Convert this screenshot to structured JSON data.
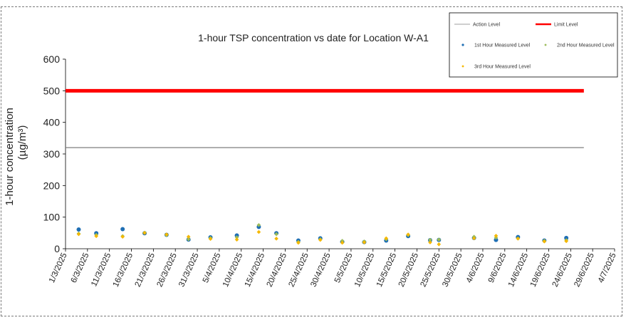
{
  "chart_data": {
    "type": "scatter",
    "title": "1-hour TSP concentration vs date for Location W-A1",
    "ylabel": "1-hour concentration",
    "ylabel_unit": "(µg/m³)",
    "ylim": [
      0,
      600
    ],
    "yticks": [
      "0",
      "100",
      "200",
      "300",
      "400",
      "500",
      "600"
    ],
    "xlim": [
      "1/3/2025",
      "4/7/2025"
    ],
    "xticks": [
      "1/3/2025",
      "6/3/2025",
      "11/3/2025",
      "16/3/2025",
      "21/3/2025",
      "26/3/2025",
      "31/3/2025",
      "5/4/2025",
      "10/4/2025",
      "15/4/2025",
      "20/4/2025",
      "25/4/2025",
      "30/4/2025",
      "5/5/2025",
      "10/5/2025",
      "15/5/2025",
      "20/5/2025",
      "25/5/2025",
      "30/5/2025",
      "4/6/2025",
      "9/6/2025",
      "14/6/2025",
      "19/6/2025",
      "24/6/2025",
      "29/6/2025",
      "4/7/2025"
    ],
    "grid": false,
    "legend_position": "top-right",
    "lines": [
      {
        "name": "Action Level",
        "value": 320,
        "color": "#7f7f7f",
        "x_start": "1/3/2025",
        "x_end": "27/6/2025"
      },
      {
        "name": "Limit Level",
        "value": 500,
        "color": "#ff0000",
        "x_start": "1/3/2025",
        "x_end": "27/6/2025"
      }
    ],
    "series": [
      {
        "name": "1st Hour Measured Level",
        "color": "#1f6fb4",
        "points": [
          [
            "4/3/2025",
            61
          ],
          [
            "8/3/2025",
            49
          ],
          [
            "14/3/2025",
            62
          ],
          [
            "19/3/2025",
            49
          ],
          [
            "24/3/2025",
            44
          ],
          [
            "29/3/2025",
            29
          ],
          [
            "3/4/2025",
            36
          ],
          [
            "9/4/2025",
            42
          ],
          [
            "14/4/2025",
            69
          ],
          [
            "18/4/2025",
            49
          ],
          [
            "23/4/2025",
            26
          ],
          [
            "28/4/2025",
            33
          ],
          [
            "3/5/2025",
            22
          ],
          [
            "8/5/2025",
            21
          ],
          [
            "13/5/2025",
            26
          ],
          [
            "18/5/2025",
            40
          ],
          [
            "23/5/2025",
            27
          ],
          [
            "25/5/2025",
            28
          ],
          [
            "2/6/2025",
            34
          ],
          [
            "7/6/2025",
            28
          ],
          [
            "12/6/2025",
            37
          ],
          [
            "18/6/2025",
            26
          ],
          [
            "23/6/2025",
            34
          ]
        ]
      },
      {
        "name": "2nd Hour Measured Level",
        "color": "#9bbb59",
        "points": [
          [
            "4/3/2025",
            48
          ],
          [
            "8/3/2025",
            44
          ],
          [
            "14/3/2025",
            40
          ],
          [
            "19/3/2025",
            51
          ],
          [
            "24/3/2025",
            43
          ],
          [
            "29/3/2025",
            30
          ],
          [
            "3/4/2025",
            34
          ],
          [
            "9/4/2025",
            36
          ],
          [
            "14/4/2025",
            75
          ],
          [
            "18/4/2025",
            46
          ],
          [
            "23/4/2025",
            22
          ],
          [
            "28/4/2025",
            30
          ],
          [
            "3/5/2025",
            25
          ],
          [
            "8/5/2025",
            23
          ],
          [
            "13/5/2025",
            30
          ],
          [
            "18/5/2025",
            43
          ],
          [
            "23/5/2025",
            28
          ],
          [
            "25/5/2025",
            29
          ],
          [
            "2/6/2025",
            38
          ],
          [
            "7/6/2025",
            35
          ],
          [
            "12/6/2025",
            33
          ],
          [
            "18/6/2025",
            25
          ],
          [
            "23/6/2025",
            27
          ]
        ]
      },
      {
        "name": "3rd Hour Measured Level",
        "color": "#f5b800",
        "points": [
          [
            "4/3/2025",
            46
          ],
          [
            "8/3/2025",
            40
          ],
          [
            "14/3/2025",
            38
          ],
          [
            "19/3/2025",
            50
          ],
          [
            "24/3/2025",
            45
          ],
          [
            "29/3/2025",
            38
          ],
          [
            "3/4/2025",
            31
          ],
          [
            "9/4/2025",
            29
          ],
          [
            "14/4/2025",
            53
          ],
          [
            "18/4/2025",
            32
          ],
          [
            "23/4/2025",
            19
          ],
          [
            "28/4/2025",
            28
          ],
          [
            "3/5/2025",
            19
          ],
          [
            "8/5/2025",
            20
          ],
          [
            "13/5/2025",
            33
          ],
          [
            "18/5/2025",
            45
          ],
          [
            "23/5/2025",
            20
          ],
          [
            "25/5/2025",
            14
          ],
          [
            "2/6/2025",
            33
          ],
          [
            "7/6/2025",
            41
          ],
          [
            "12/6/2025",
            32
          ],
          [
            "18/6/2025",
            23
          ],
          [
            "23/6/2025",
            24
          ]
        ]
      }
    ]
  }
}
